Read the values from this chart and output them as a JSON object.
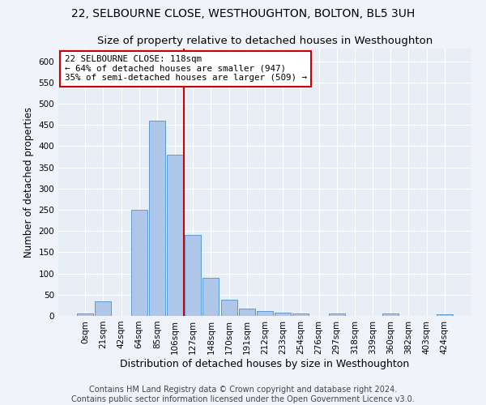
{
  "title": "22, SELBOURNE CLOSE, WESTHOUGHTON, BOLTON, BL5 3UH",
  "subtitle": "Size of property relative to detached houses in Westhoughton",
  "xlabel": "Distribution of detached houses by size in Westhoughton",
  "ylabel": "Number of detached properties",
  "bin_labels": [
    "0sqm",
    "21sqm",
    "42sqm",
    "64sqm",
    "85sqm",
    "106sqm",
    "127sqm",
    "148sqm",
    "170sqm",
    "191sqm",
    "212sqm",
    "233sqm",
    "254sqm",
    "276sqm",
    "297sqm",
    "318sqm",
    "339sqm",
    "360sqm",
    "382sqm",
    "403sqm",
    "424sqm"
  ],
  "bar_heights": [
    5,
    35,
    0,
    250,
    460,
    380,
    190,
    90,
    38,
    18,
    12,
    7,
    6,
    0,
    5,
    0,
    0,
    5,
    0,
    0,
    4
  ],
  "bar_color": "#aec6e8",
  "bar_edge_color": "#5b9bd5",
  "property_bin_index": 5,
  "annotation_text": "22 SELBOURNE CLOSE: 118sqm\n← 64% of detached houses are smaller (947)\n35% of semi-detached houses are larger (509) →",
  "annotation_box_color": "#ffffff",
  "annotation_box_edge_color": "#cc0000",
  "vline_color": "#cc0000",
  "ylim": [
    0,
    630
  ],
  "yticks": [
    0,
    50,
    100,
    150,
    200,
    250,
    300,
    350,
    400,
    450,
    500,
    550,
    600
  ],
  "footer_line1": "Contains HM Land Registry data © Crown copyright and database right 2024.",
  "footer_line2": "Contains public sector information licensed under the Open Government Licence v3.0.",
  "fig_background_color": "#f0f4fa",
  "ax_background_color": "#e8eef5",
  "grid_color": "#ffffff",
  "title_fontsize": 10,
  "subtitle_fontsize": 9.5,
  "xlabel_fontsize": 9,
  "ylabel_fontsize": 8.5,
  "tick_fontsize": 7.5,
  "annotation_fontsize": 7.8,
  "footer_fontsize": 7
}
